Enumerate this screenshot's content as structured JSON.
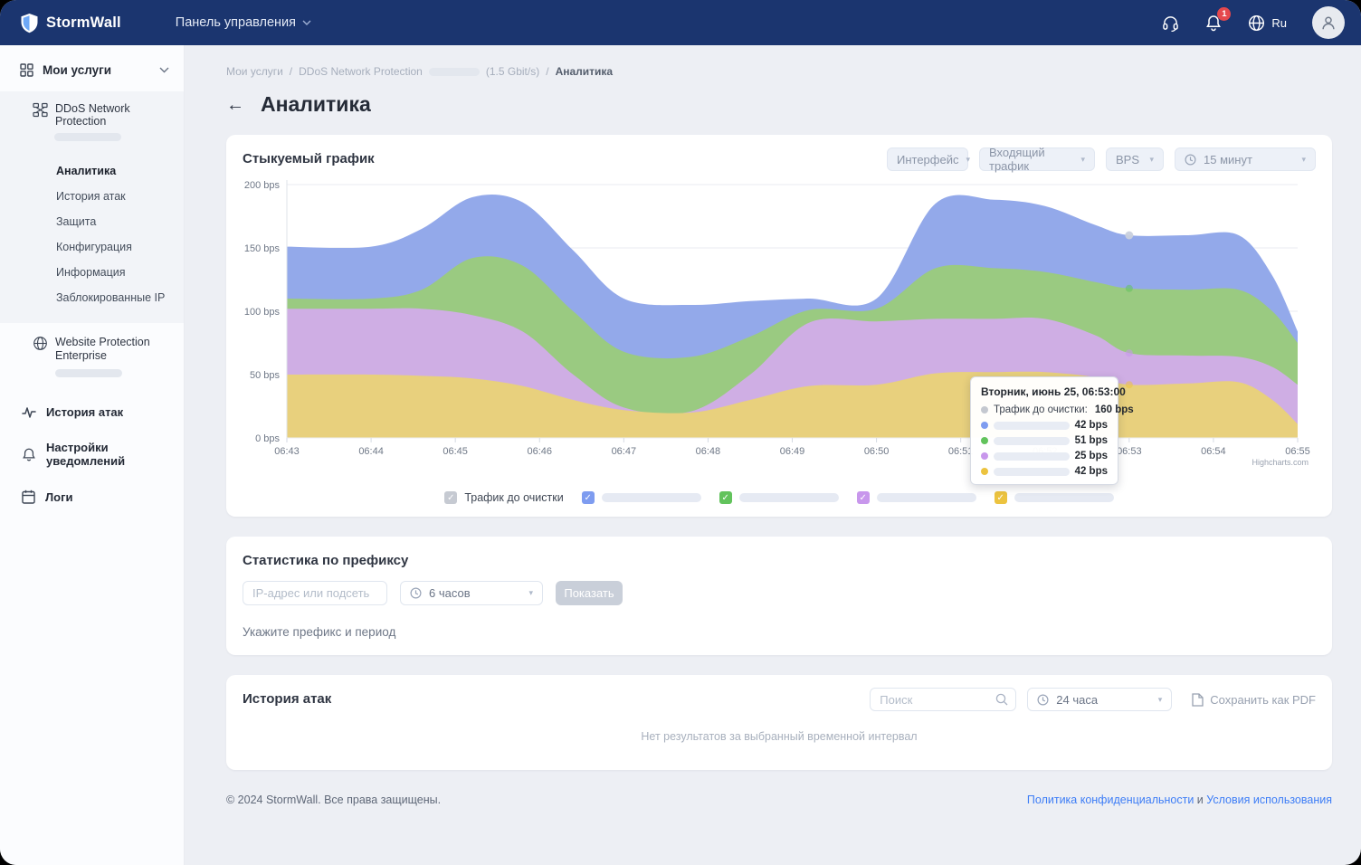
{
  "navbar": {
    "brand": "StormWall",
    "menu": "Панель управления",
    "lang": "Ru",
    "notifications_badge": "1"
  },
  "sidebar": {
    "section_label": "Мои услуги",
    "ddos": {
      "label": "DDoS Network Protection",
      "items": [
        {
          "label": "Аналитика",
          "active": true
        },
        {
          "label": "История атак",
          "active": false
        },
        {
          "label": "Защита",
          "active": false
        },
        {
          "label": "Конфигурация",
          "active": false
        },
        {
          "label": "Информация",
          "active": false
        },
        {
          "label": "Заблокированные IP",
          "active": false
        }
      ]
    },
    "website": {
      "label": "Website Protection Enterprise"
    },
    "links": [
      {
        "label": "История атак",
        "icon": "activity-icon"
      },
      {
        "label": "Настройки уведомлений",
        "icon": "bell-icon"
      },
      {
        "label": "Логи",
        "icon": "calendar-icon"
      }
    ]
  },
  "breadcrumb": {
    "crumb1": "Мои услуги",
    "sep": "/",
    "crumb2": "DDoS Network Protection",
    "crumb2_suffix": "(1.5 Gbit/s)",
    "current": "Аналитика"
  },
  "page_title": "Аналитика",
  "back_arrow": "←",
  "chart_card": {
    "title": "Стыкуемый график",
    "filters": [
      {
        "label": "Интерфейс"
      },
      {
        "label": "Входящий трафик"
      },
      {
        "label": "BPS"
      },
      {
        "label": "15 минут",
        "icon": "clock-icon"
      }
    ],
    "legend_base_label": "Трафик до очистки",
    "credit": "Highcharts.com"
  },
  "chart_data": {
    "type": "area",
    "stacked": true,
    "title": "Стыкуемый график",
    "grid": true,
    "legend_position": "bottom",
    "ylim": [
      0,
      200
    ],
    "y_ticks": [
      "0 bps",
      "50 bps",
      "100 bps",
      "150 bps",
      "200 bps"
    ],
    "x_ticks": [
      "06:43",
      "06:44",
      "06:45",
      "06:46",
      "06:47",
      "06:48",
      "06:49",
      "06:50",
      "06:51",
      "06:52",
      "06:53",
      "06:54",
      "06:55"
    ],
    "x_minutes": [
      0,
      1,
      1.6,
      2.2,
      2.8,
      3.4,
      4,
      4.8,
      5.5,
      6.2,
      7,
      7.7,
      8.4,
      9,
      9.6,
      10,
      10.7,
      11.3,
      11.7,
      12
    ],
    "series": [
      {
        "name": "series-yellow",
        "color": "#e8d07d",
        "swatch": "#ecc33f",
        "values": [
          50,
          50,
          49,
          47,
          41,
          30,
          22,
          20,
          30,
          41,
          42,
          51,
          52,
          52,
          48,
          42,
          43,
          44,
          30,
          11
        ]
      },
      {
        "name": "series-purple",
        "color": "#cfaee4",
        "swatch": "#c897ec",
        "values": [
          52,
          52,
          53,
          50,
          43,
          20,
          2,
          1,
          20,
          50,
          50,
          43,
          42,
          42,
          33,
          25,
          22,
          20,
          26,
          31
        ]
      },
      {
        "name": "series-green",
        "color": "#9aca81",
        "swatch": "#62c35c",
        "values": [
          8,
          8,
          15,
          45,
          52,
          50,
          44,
          43,
          30,
          10,
          10,
          40,
          40,
          37,
          42,
          51,
          52,
          53,
          44,
          33
        ]
      },
      {
        "name": "series-blue",
        "color": "#93a9ea",
        "swatch": "#7e9cf0",
        "values": [
          41,
          41,
          48,
          48,
          50,
          48,
          42,
          41,
          28,
          9,
          8,
          51,
          54,
          52,
          45,
          42,
          43,
          43,
          28,
          9
        ]
      }
    ],
    "hover": {
      "t": 10,
      "time": "06:53:00",
      "total_bps": 160
    }
  },
  "tooltip": {
    "title": "Вторник, июнь 25, 06:53:00",
    "total_dot_color": "#c4c8d0",
    "total_label": "Трафик до очистки:",
    "total_value": "160 bps",
    "rows": [
      {
        "color": "#7e9cf0",
        "value": "42 bps"
      },
      {
        "color": "#62c35c",
        "value": "51 bps"
      },
      {
        "color": "#c897ec",
        "value": "25 bps"
      },
      {
        "color": "#ecc33f",
        "value": "42 bps"
      }
    ]
  },
  "prefix_card": {
    "title": "Статистика по префиксу",
    "input_placeholder": "IP-адрес или подсеть",
    "period": "6 часов",
    "button": "Показать",
    "note": "Укажите префикс и период"
  },
  "attacks_card": {
    "title": "История атак",
    "search_placeholder": "Поиск",
    "period": "24 часа",
    "pdf_label": "Сохранить как PDF",
    "empty": "Нет результатов за выбранный временной интервал"
  },
  "footer": {
    "copyright": "© 2024 StormWall. Все права защищены.",
    "link1": "Политика конфиденциальности",
    "sep": " и ",
    "link2": "Условия использования"
  }
}
